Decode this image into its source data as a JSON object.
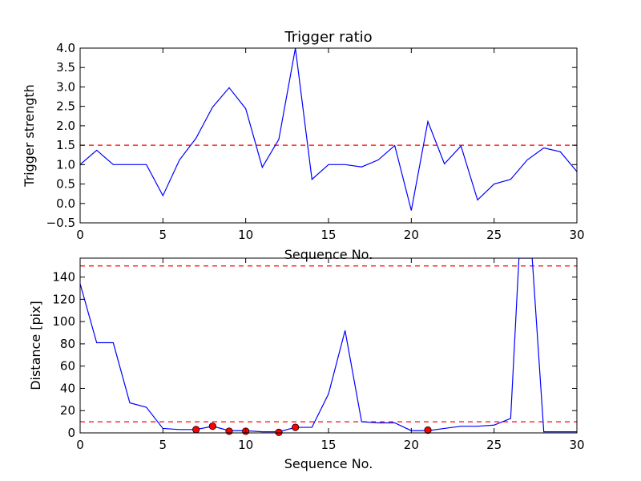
{
  "chart_data": [
    {
      "type": "line",
      "title": "Trigger ratio",
      "xlabel": "Sequence No.",
      "ylabel": "Trigger strength",
      "xlim": [
        0,
        30
      ],
      "ylim": [
        -0.5,
        4.0
      ],
      "xticks": [
        0,
        5,
        10,
        15,
        20,
        25,
        30
      ],
      "yticks": [
        -0.5,
        0.0,
        0.5,
        1.0,
        1.5,
        2.0,
        2.5,
        3.0,
        3.5,
        4.0
      ],
      "ytick_labels": [
        "−0.5",
        "0.0",
        "0.5",
        "1.0",
        "1.5",
        "2.0",
        "2.5",
        "3.0",
        "3.5",
        "4.0"
      ],
      "series": [
        {
          "color": "#0000ff",
          "x": [
            0,
            1,
            2,
            3,
            4,
            5,
            6,
            7,
            8,
            9,
            10,
            11,
            12,
            13,
            14,
            15,
            16,
            17,
            18,
            19,
            20,
            21,
            22,
            23,
            24,
            25,
            26,
            27,
            28,
            29,
            30
          ],
          "y": [
            1.0,
            1.37,
            1.0,
            1.0,
            1.0,
            0.2,
            1.12,
            1.68,
            2.48,
            2.98,
            2.44,
            0.93,
            1.65,
            4.0,
            0.62,
            1.0,
            1.0,
            0.94,
            1.12,
            1.49,
            -0.18,
            2.11,
            1.02,
            1.48,
            0.09,
            0.5,
            0.62,
            1.12,
            1.43,
            1.33,
            0.82
          ]
        }
      ],
      "hlines": [
        {
          "y": 1.5,
          "color": "#ff0000",
          "style": "dashed"
        }
      ],
      "grid": false
    },
    {
      "type": "line",
      "title": "",
      "xlabel": "Sequence No.",
      "ylabel": "Distance [pix]",
      "xlim": [
        0,
        30
      ],
      "ylim": [
        0,
        157
      ],
      "xticks": [
        0,
        5,
        10,
        15,
        20,
        25,
        30
      ],
      "yticks": [
        0,
        20,
        40,
        60,
        80,
        100,
        120,
        140
      ],
      "series": [
        {
          "color": "#0000ff",
          "x": [
            0,
            1,
            2,
            3,
            4,
            5,
            6,
            7,
            8,
            9,
            10,
            11,
            12,
            13,
            14,
            15,
            16,
            17,
            18,
            19,
            20,
            21,
            22,
            23,
            24,
            25,
            26,
            26.5,
            27.3,
            28,
            29,
            30
          ],
          "y": [
            134,
            81,
            81,
            27,
            23,
            4,
            3,
            3,
            6,
            2,
            2,
            1,
            1,
            5,
            5,
            35,
            92,
            10,
            9,
            9,
            2,
            2,
            4,
            6,
            6,
            7,
            13,
            157,
            157,
            1,
            1,
            1
          ]
        }
      ],
      "markers": {
        "color": "#ff0000",
        "x": [
          7,
          8,
          9,
          10,
          12,
          13,
          21
        ],
        "y": [
          3,
          6,
          1.5,
          1.5,
          0.5,
          5,
          2.5
        ]
      },
      "hlines": [
        {
          "y": 10,
          "color": "#ff0000",
          "style": "dashed"
        },
        {
          "y": 150,
          "color": "#ff0000",
          "style": "dashed"
        }
      ],
      "grid": false
    }
  ]
}
